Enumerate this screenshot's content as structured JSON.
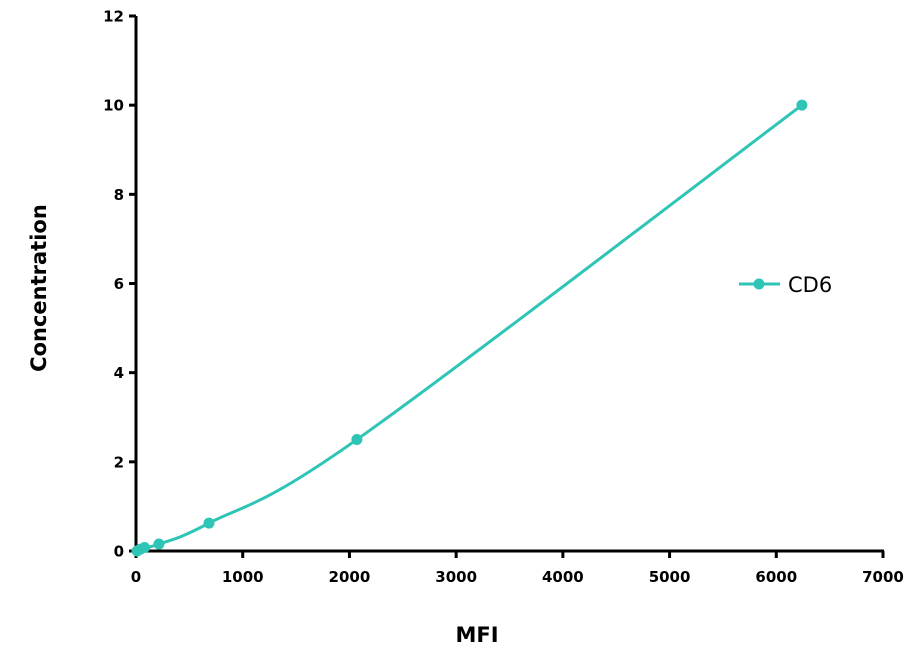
{
  "chart_data": {
    "type": "line",
    "title": "",
    "xlabel": "MFI",
    "ylabel": "Concentration",
    "xlim": [
      0,
      7000
    ],
    "ylim": [
      0,
      12
    ],
    "xticks": [
      0,
      1000,
      2000,
      3000,
      4000,
      5000,
      6000,
      7000
    ],
    "yticks": [
      0,
      2,
      4,
      6,
      8,
      10,
      12
    ],
    "grid": false,
    "legend_position": "right",
    "series": [
      {
        "name": "CD6",
        "color": "#2ec4b6",
        "x": [
          10,
          40,
          80,
          215,
          684,
          2070,
          6240
        ],
        "y": [
          0,
          0.039,
          0.078,
          0.156,
          0.625,
          2.5,
          10
        ]
      }
    ]
  },
  "legend": {
    "label": "CD6"
  },
  "axes": {
    "x_title": "MFI",
    "y_title": "Concentration"
  }
}
